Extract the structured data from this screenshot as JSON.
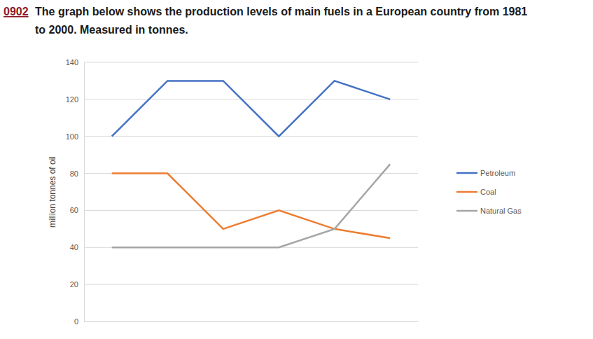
{
  "chart_data": {
    "type": "line",
    "title": "The graph below shows the production levels of main fuels in a European country from 1981 to 2000. Measured in tonnes.",
    "annotations": [
      {
        "text": "0902"
      }
    ],
    "y_label": "million tonnes of oil",
    "categories": [
      null,
      null,
      null,
      null,
      null,
      null
    ],
    "series": [
      {
        "name": "Petroleum",
        "color": "#4472c4",
        "values": [
          100,
          130,
          130,
          100,
          130,
          120
        ]
      },
      {
        "name": "Coal",
        "color": "#ed7d31",
        "values": [
          80,
          80,
          50,
          60,
          50,
          45
        ]
      },
      {
        "name": "Natural Gas",
        "color": "#a5a5a5",
        "values": [
          40,
          40,
          40,
          40,
          50,
          85
        ]
      }
    ],
    "ylim": [
      0,
      140
    ],
    "yticks": [
      0,
      20,
      40,
      60,
      80,
      100,
      120,
      140
    ],
    "grid": true,
    "legend": "right",
    "tick_labels": "y"
  }
}
